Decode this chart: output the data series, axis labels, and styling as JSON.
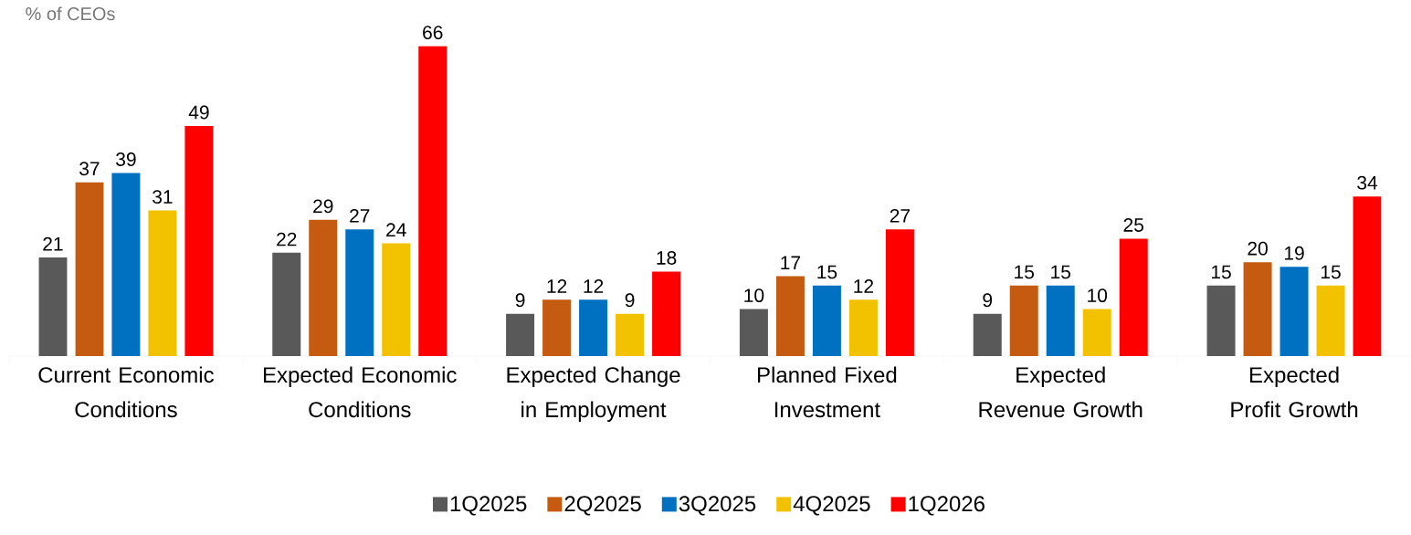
{
  "chart_data": {
    "type": "bar",
    "ylabel": "% of CEOs",
    "categories": [
      "Current Economic Conditions",
      "Expected Economic Conditions",
      "Expected Change in Employment",
      "Planned Fixed Investment",
      "Expected Revenue Growth",
      "Expected Profit Growth"
    ],
    "series": [
      {
        "name": "1Q2025",
        "color": "#595959",
        "values": [
          21,
          22,
          9,
          10,
          9,
          15
        ]
      },
      {
        "name": "2Q2025",
        "color": "#c55a11",
        "values": [
          37,
          29,
          12,
          17,
          15,
          20
        ]
      },
      {
        "name": "3Q2025",
        "color": "#0070c0",
        "values": [
          39,
          27,
          12,
          15,
          15,
          19
        ]
      },
      {
        "name": "4Q2025",
        "color": "#f2c100",
        "values": [
          31,
          24,
          9,
          12,
          10,
          15
        ]
      },
      {
        "name": "1Q2026",
        "color": "#ff0000",
        "values": [
          49,
          66,
          18,
          27,
          25,
          34
        ]
      }
    ],
    "data_labels": true,
    "legend": "bottom"
  }
}
